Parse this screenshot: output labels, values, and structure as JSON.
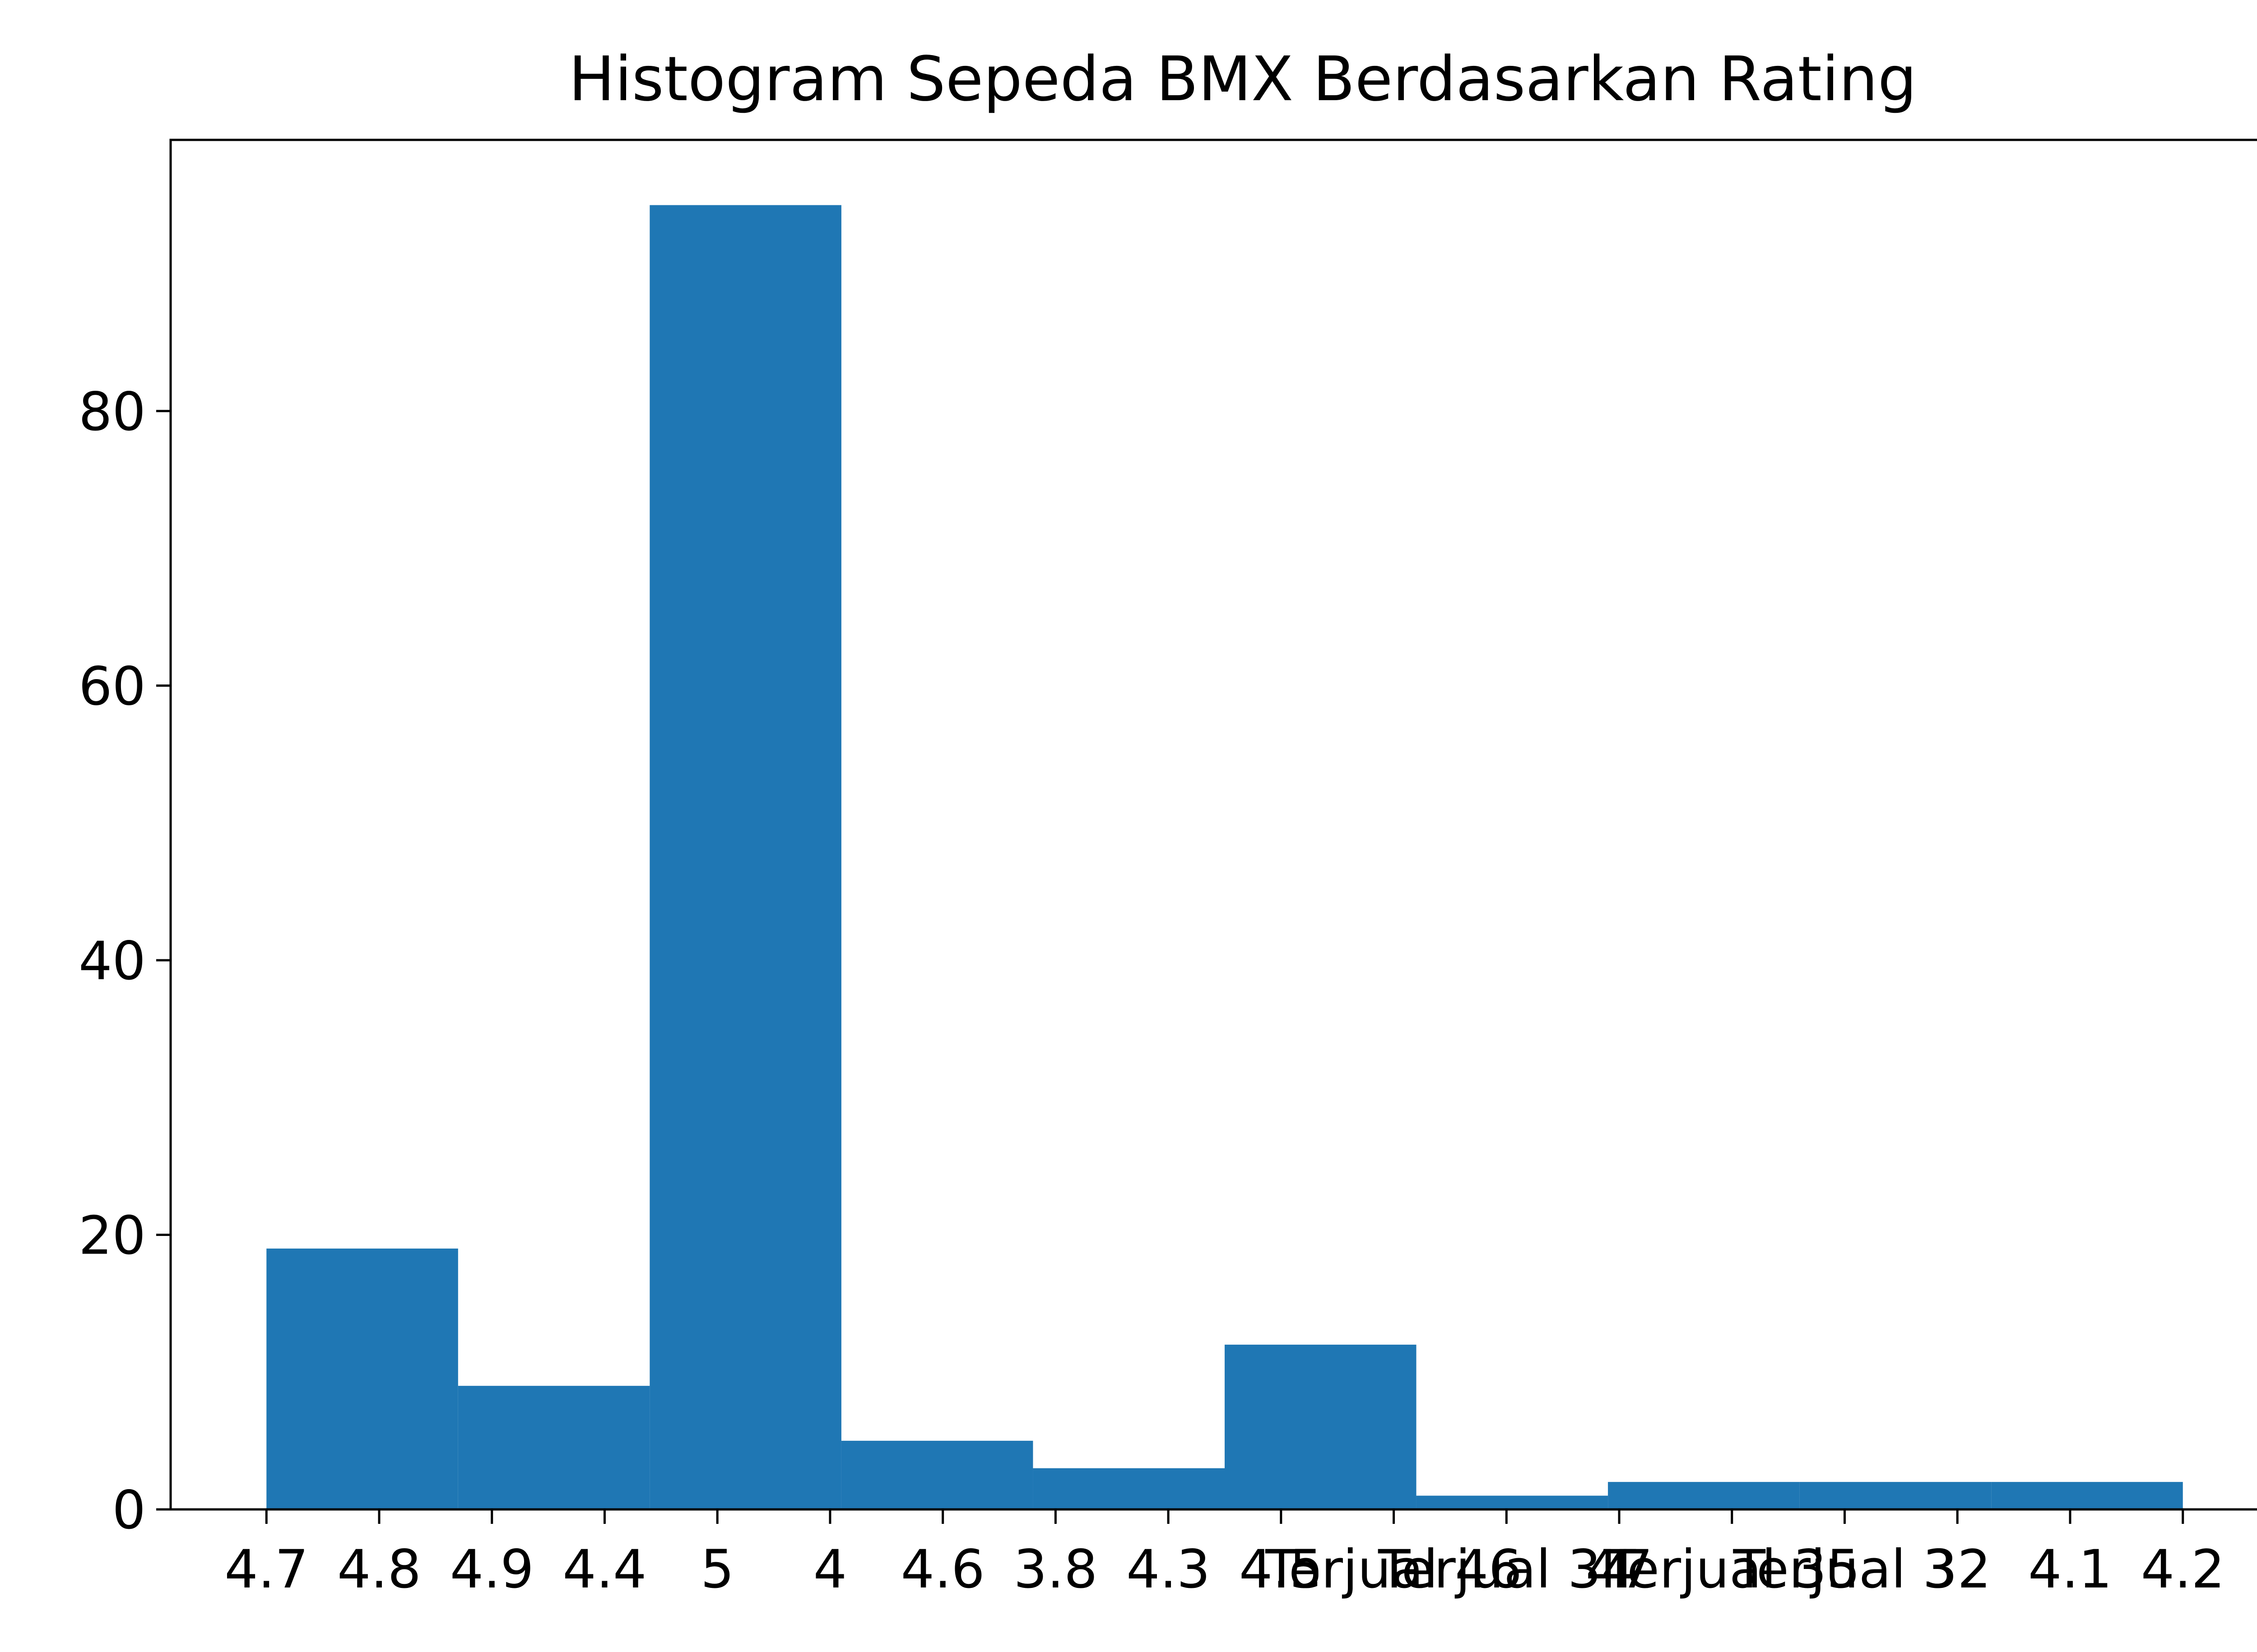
{
  "chart_data": {
    "type": "bar",
    "title": "Histogram Sepeda BMX Berdasarkan Rating",
    "xlabel": "",
    "ylabel": "",
    "categories": [
      "4.7",
      "4.8",
      "4.9",
      "4.4",
      "5",
      "4",
      "4.6",
      "3.8",
      "4.3",
      "4.5",
      "Terjual 46",
      "Terjual 34",
      "47",
      "Terjual 35",
      "Terjual 3",
      "32",
      "4.1",
      "4.2"
    ],
    "bins": [
      {
        "x0": 0,
        "x1": 1.7,
        "count": 19
      },
      {
        "x0": 1.7,
        "x1": 3.4,
        "count": 9
      },
      {
        "x0": 3.4,
        "x1": 5.1,
        "count": 95
      },
      {
        "x0": 5.1,
        "x1": 6.8,
        "count": 5
      },
      {
        "x0": 6.8,
        "x1": 8.5,
        "count": 3
      },
      {
        "x0": 8.5,
        "x1": 10.2,
        "count": 12
      },
      {
        "x0": 10.2,
        "x1": 11.9,
        "count": 1
      },
      {
        "x0": 11.9,
        "x1": 13.6,
        "count": 2
      },
      {
        "x0": 13.6,
        "x1": 15.3,
        "count": 2
      },
      {
        "x0": 15.3,
        "x1": 17.0,
        "count": 2
      }
    ],
    "yticks": [
      0,
      20,
      40,
      60,
      80
    ],
    "ylim": [
      0,
      99.75
    ],
    "xlim": [
      -0.85,
      17.85
    ],
    "grid": false,
    "colors": {
      "bar": "#1f77b4"
    }
  }
}
